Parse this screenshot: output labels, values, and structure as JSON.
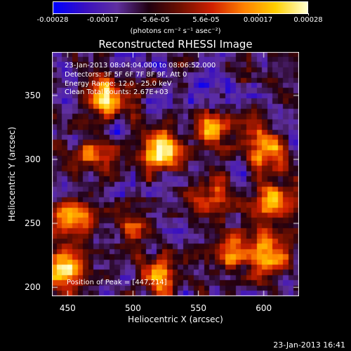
{
  "chart_data": {
    "type": "heatmap",
    "title": "Reconstructed RHESSI Image",
    "xlabel": "Heliocentric X (arcsec)",
    "ylabel": "Heliocentric Y (arcsec)",
    "xlim": [
      438,
      627
    ],
    "ylim": [
      193,
      384
    ],
    "x_ticks": [
      "450",
      "500",
      "550",
      "600"
    ],
    "x_tick_values": [
      450,
      500,
      550,
      600
    ],
    "y_ticks": [
      "200",
      "250",
      "300",
      "350"
    ],
    "y_tick_values": [
      200,
      250,
      300,
      350
    ],
    "colorbar": {
      "ticks": [
        "-0.00028",
        "-0.00017",
        "-5.6e-05",
        "5.6e-05",
        "0.00017",
        "0.00028"
      ],
      "tick_values": [
        -0.00028,
        -0.00017,
        -5.6e-05,
        5.6e-05,
        0.00017,
        0.00028
      ],
      "units": "(photons cm⁻² s⁻¹ asec⁻²)",
      "colors": [
        "#0000ff",
        "#3a10c0",
        "#6030a0",
        "#200010",
        "#701000",
        "#d02000",
        "#ff8000",
        "#ffd000",
        "#ffffd0"
      ]
    },
    "annotations": {
      "time_range": "23-Jan-2013 08:04:04.000 to 08:06:52.000",
      "detectors": "Detectors: 3F 5F 6F 7F 8F 9F, Att 0",
      "energy": "Energy Range: 12.0 - 25.0 keV",
      "clean": "Clean     Total counts: 2.67E+03",
      "peak": "Position of Peak = [447,214]"
    },
    "peak": [
      447,
      214
    ],
    "bright_sources": [
      {
        "x": 520,
        "y": 306,
        "intensity": 1.0
      },
      {
        "x": 480,
        "y": 348,
        "intensity": 0.85
      },
      {
        "x": 447,
        "y": 214,
        "intensity": 1.0
      },
      {
        "x": 600,
        "y": 310,
        "intensity": 0.8
      },
      {
        "x": 560,
        "y": 320,
        "intensity": 0.7
      },
      {
        "x": 455,
        "y": 255,
        "intensity": 0.75
      },
      {
        "x": 520,
        "y": 210,
        "intensity": 0.75
      },
      {
        "x": 605,
        "y": 225,
        "intensity": 0.8
      },
      {
        "x": 610,
        "y": 265,
        "intensity": 0.7
      },
      {
        "x": 575,
        "y": 230,
        "intensity": 0.6
      },
      {
        "x": 470,
        "y": 300,
        "intensity": 0.55
      },
      {
        "x": 560,
        "y": 270,
        "intensity": 0.55
      },
      {
        "x": 500,
        "y": 250,
        "intensity": 0.5
      }
    ]
  },
  "timestamp": "23-Jan-2013 16:41"
}
